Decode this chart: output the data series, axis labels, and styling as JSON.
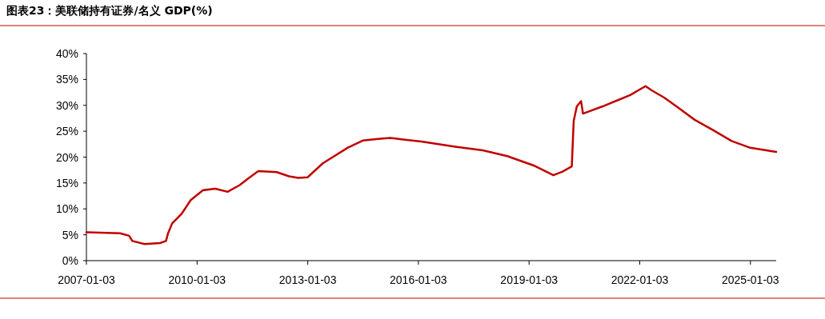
{
  "chart_data": {
    "type": "line",
    "title": "图表23：美联储持有证券/名义 GDP(%)",
    "xlim": [
      "2007-01-03",
      "2025-09-15"
    ],
    "xticks": [
      "2007-01-03",
      "2010-01-03",
      "2013-01-03",
      "2016-01-03",
      "2019-01-03",
      "2022-01-03",
      "2025-01-03"
    ],
    "ylim": [
      0,
      40
    ],
    "yticks": [
      {
        "value": 0,
        "label": "0%"
      },
      {
        "value": 5,
        "label": "5%"
      },
      {
        "value": 10,
        "label": "10%"
      },
      {
        "value": 15,
        "label": "15%"
      },
      {
        "value": 20,
        "label": "20%"
      },
      {
        "value": 25,
        "label": "25%"
      },
      {
        "value": 30,
        "label": "30%"
      },
      {
        "value": 35,
        "label": "35%"
      },
      {
        "value": 40,
        "label": "40%"
      }
    ],
    "marker": "none",
    "line_style": "solid",
    "series": [
      {
        "color": "#c00000",
        "x": [
          "2007-01-03",
          "2007-12",
          "2008-03",
          "2008-04",
          "2008-08",
          "2009-01",
          "2009-03-01",
          "2009-03-20",
          "2009-05",
          "2009-08",
          "2009-11",
          "2010-03",
          "2010-07",
          "2010-11",
          "2011-03",
          "2011-06",
          "2011-09",
          "2012-03",
          "2012-07",
          "2012-10",
          "2013-01",
          "2013-06",
          "2014-02",
          "2014-07",
          "2014-12",
          "2015-04",
          "2016-02",
          "2017-01",
          "2017-10",
          "2018-06",
          "2019-03",
          "2019-09",
          "2019-12",
          "2020-03-01",
          "2020-03-20",
          "2020-04-20",
          "2020-06-01",
          "2020-06-20",
          "2021-01",
          "2021-06",
          "2021-10",
          "2022-03",
          "2022-05",
          "2022-09",
          "2023-01",
          "2023-07",
          "2024-01",
          "2024-07",
          "2025-01",
          "2025-09-15"
        ],
        "values": [
          5.5,
          5.3,
          4.8,
          3.8,
          3.2,
          3.4,
          3.8,
          5.2,
          7.2,
          9.0,
          11.7,
          13.6,
          13.9,
          13.3,
          14.6,
          16.0,
          17.3,
          17.1,
          16.3,
          16.0,
          16.1,
          18.8,
          21.8,
          23.2,
          23.5,
          23.7,
          23.0,
          22.0,
          21.3,
          20.2,
          18.3,
          16.5,
          17.2,
          18.2,
          27.0,
          29.8,
          30.8,
          28.4,
          29.8,
          31.0,
          32.0,
          33.7,
          32.9,
          31.5,
          29.8,
          27.2,
          25.2,
          23.1,
          21.8,
          21.0
        ]
      }
    ]
  }
}
